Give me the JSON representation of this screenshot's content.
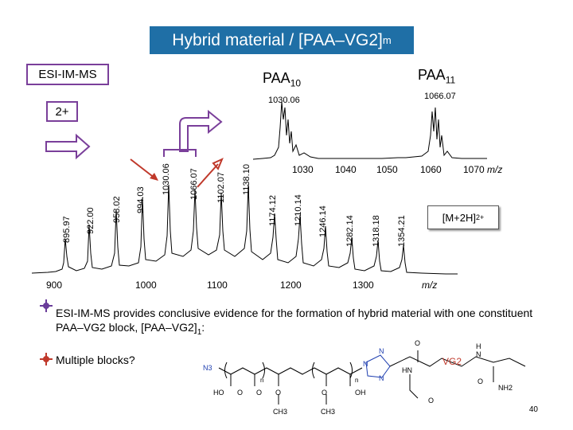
{
  "slide": {
    "title": "Hybrid material / [PAA–VG2]",
    "title_sub": "m",
    "method_label": "ESI-IM-MS",
    "charge_label": "2+",
    "page_number": "40"
  },
  "inset": {
    "series_a": "PAA",
    "series_a_sub": "10",
    "series_b": "PAA",
    "series_b_sub": "11",
    "peak_a": "1030.06",
    "peak_b": "1066.07",
    "ticks": [
      "1030",
      "1040",
      "1050",
      "1060",
      "1070"
    ],
    "axis_unit": "m/z"
  },
  "spectrum": {
    "peak_labels": [
      "895.97",
      "922.00",
      "958.02",
      "994.03",
      "1030.06",
      "1066.07",
      "1102.07",
      "1138.10",
      "1174.12",
      "1210.14",
      "1246.14",
      "1282.14",
      "1318.18",
      "1354.21"
    ],
    "ticks": [
      "900",
      "1000",
      "1100",
      "1200",
      "1300"
    ],
    "axis_unit": "m/z",
    "ion_label": "[M+2H]",
    "ion_charge": "2+"
  },
  "bullets": {
    "first": "ESI-IM-MS provides conclusive evidence for the formation of hybrid material with one constituent PAA–VG2 block, [PAA–VG2]",
    "first_sub": "1",
    "first_end": ":",
    "second": "Multiple blocks?"
  },
  "structure": {
    "labels": [
      "N3",
      "HO",
      "O",
      "O",
      "O",
      "O",
      "OH",
      "CH3",
      "CH3",
      "n",
      "n",
      "N",
      "N",
      "N",
      "O",
      "HN",
      "O",
      "VG2",
      "H",
      "N",
      "O",
      "NH2"
    ]
  },
  "colors": {
    "title_bg": "#1f6fa6",
    "box_border": "#7a3f9a",
    "arrow_red": "#c0392b",
    "bullet_purple": "#6a3d9a",
    "bullet_red": "#c0392b",
    "vg2_red": "#c0392b",
    "nitrogen_blue": "#1f3fb0"
  }
}
